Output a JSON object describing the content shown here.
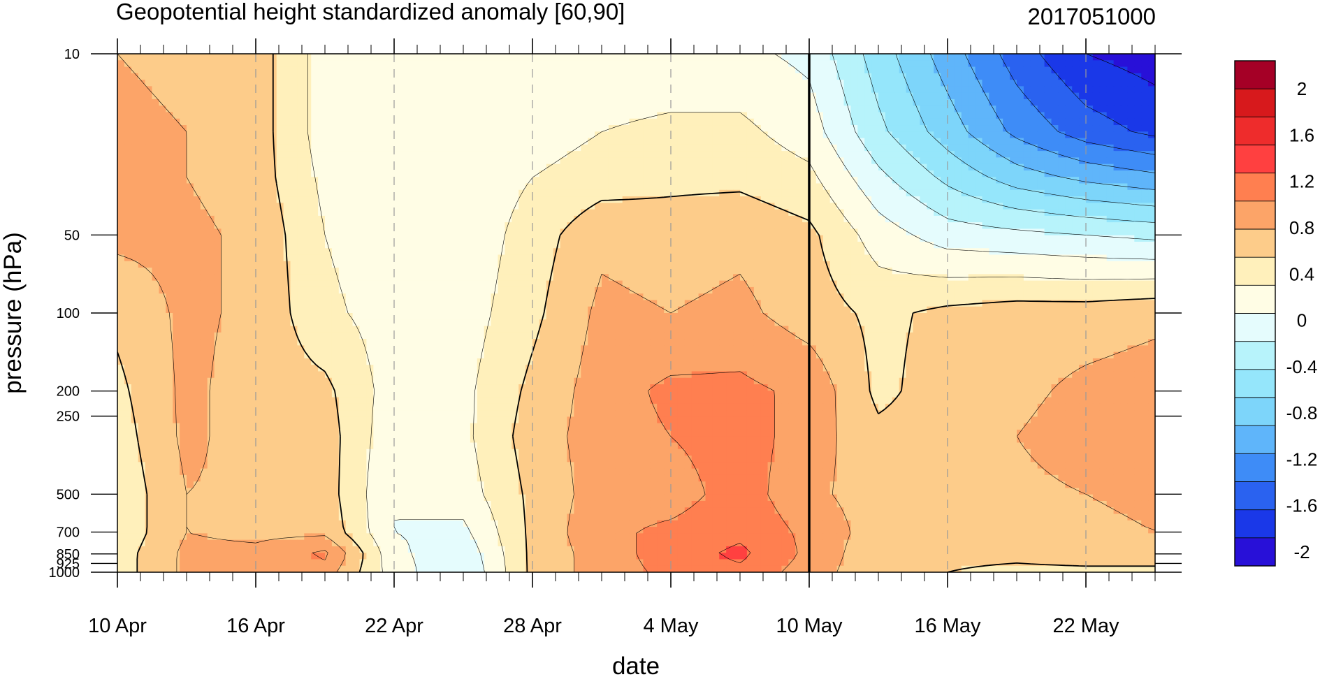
{
  "chart_data": {
    "type": "heatmap",
    "title": "Geopotential height standardized anomaly [60,90]",
    "date_label": "2017051000",
    "xlabel": "date",
    "ylabel": "pressure (hPa)",
    "x_ticks": [
      "10 Apr",
      "16 Apr",
      "22 Apr",
      "28 Apr",
      "4 May",
      "10 May",
      "16 May",
      "22 May"
    ],
    "y_ticks": [
      10,
      50,
      100,
      200,
      250,
      500,
      700,
      850,
      925,
      1000
    ],
    "y_tick_labels": [
      "10",
      "50",
      "100",
      "200",
      "250",
      "500",
      "700",
      "850",
      "925",
      "1000"
    ],
    "ylim": [
      1000,
      10
    ],
    "y_scale": "log",
    "marked_date": "10 May",
    "colorbar": {
      "labels": [
        "2",
        "1.6",
        "1.2",
        "0.8",
        "0.4",
        "0",
        "-0.4",
        "-0.8",
        "-1.2",
        "-1.6",
        "-2"
      ],
      "colors": [
        "#a50026",
        "#d7191c",
        "#ee2c2c",
        "#ff4040",
        "#ff7f50",
        "#fca468",
        "#fdcc8a",
        "#fff0bb",
        "#fffde5",
        "#e5fcfd",
        "#b7f3fb",
        "#95e6fb",
        "#7dd5fa",
        "#5fb5fa",
        "#3e8cf7",
        "#2a62f0",
        "#1a38e8",
        "#2810d8"
      ]
    },
    "contour_levels": [
      -2.2,
      -2.0,
      -1.8,
      -1.6,
      -1.4,
      -1.2,
      -1.0,
      -0.8,
      -0.6,
      -0.4,
      -0.2,
      0.0,
      0.2,
      0.4,
      0.6,
      0.8,
      1.0,
      1.2,
      1.4,
      1.6,
      1.8,
      2.0,
      2.2
    ],
    "grid_days": [
      0,
      3,
      6,
      9,
      12,
      15,
      18,
      21,
      24,
      27,
      30,
      33,
      36,
      39,
      42,
      45
    ],
    "grid_pressures": [
      10,
      20,
      30,
      50,
      100,
      200,
      300,
      500,
      700,
      850,
      1000
    ],
    "anomaly": [
      [
        0.2,
        0.15,
        0.1,
        -0.3,
        -0.35,
        -0.35,
        -0.35,
        -0.35,
        -0.35,
        -0.35,
        -0.45,
        -0.9,
        -1.3,
        -1.7,
        -2.0,
        -2.1
      ],
      [
        0.25,
        0.2,
        0.1,
        -0.3,
        -0.35,
        -0.35,
        -0.3,
        -0.2,
        -0.15,
        -0.15,
        -0.3,
        -0.75,
        -1.1,
        -1.45,
        -1.7,
        -1.85
      ],
      [
        0.25,
        0.2,
        0.1,
        -0.25,
        -0.35,
        -0.35,
        -0.2,
        -0.1,
        -0.05,
        -0.05,
        -0.15,
        -0.55,
        -0.85,
        -1.1,
        -1.25,
        -1.35
      ],
      [
        0.25,
        0.25,
        0.15,
        -0.2,
        -0.35,
        -0.35,
        -0.1,
        0.15,
        0.1,
        0.15,
        0.05,
        -0.3,
        -0.5,
        -0.55,
        -0.6,
        -0.65
      ],
      [
        0.05,
        0.25,
        0.15,
        -0.15,
        -0.3,
        -0.3,
        -0.05,
        0.25,
        0.2,
        0.25,
        0.1,
        -0.05,
        0.05,
        0.1,
        0.1,
        0.15
      ],
      [
        -0.05,
        0.25,
        0.1,
        0.05,
        -0.3,
        -0.25,
        0.05,
        0.3,
        0.45,
        0.45,
        0.35,
        -0.05,
        0.1,
        0.15,
        0.25,
        0.3
      ],
      [
        -0.1,
        0.25,
        0.1,
        0.1,
        -0.35,
        -0.25,
        0.1,
        0.3,
        0.4,
        0.5,
        0.3,
        0.05,
        0.1,
        0.2,
        0.3,
        0.3
      ],
      [
        -0.15,
        0.2,
        0.15,
        0.1,
        -0.4,
        -0.3,
        0.05,
        0.3,
        0.3,
        0.5,
        0.25,
        0.1,
        0.1,
        0.15,
        0.2,
        0.25
      ],
      [
        -0.15,
        0.2,
        0.15,
        0.15,
        -0.4,
        -0.45,
        0.05,
        0.35,
        0.45,
        0.55,
        0.35,
        0.1,
        0.1,
        0.1,
        0.15,
        0.2
      ],
      [
        -0.1,
        0.25,
        0.25,
        0.45,
        -0.35,
        -0.55,
        0.05,
        0.3,
        0.5,
        0.65,
        0.35,
        0.05,
        0.05,
        0.05,
        0.1,
        0.1
      ],
      [
        -0.1,
        0.25,
        0.2,
        0.3,
        -0.3,
        -0.6,
        0.05,
        0.3,
        0.45,
        0.55,
        0.3,
        0.05,
        0.0,
        -0.05,
        -0.05,
        -0.05
      ]
    ]
  }
}
